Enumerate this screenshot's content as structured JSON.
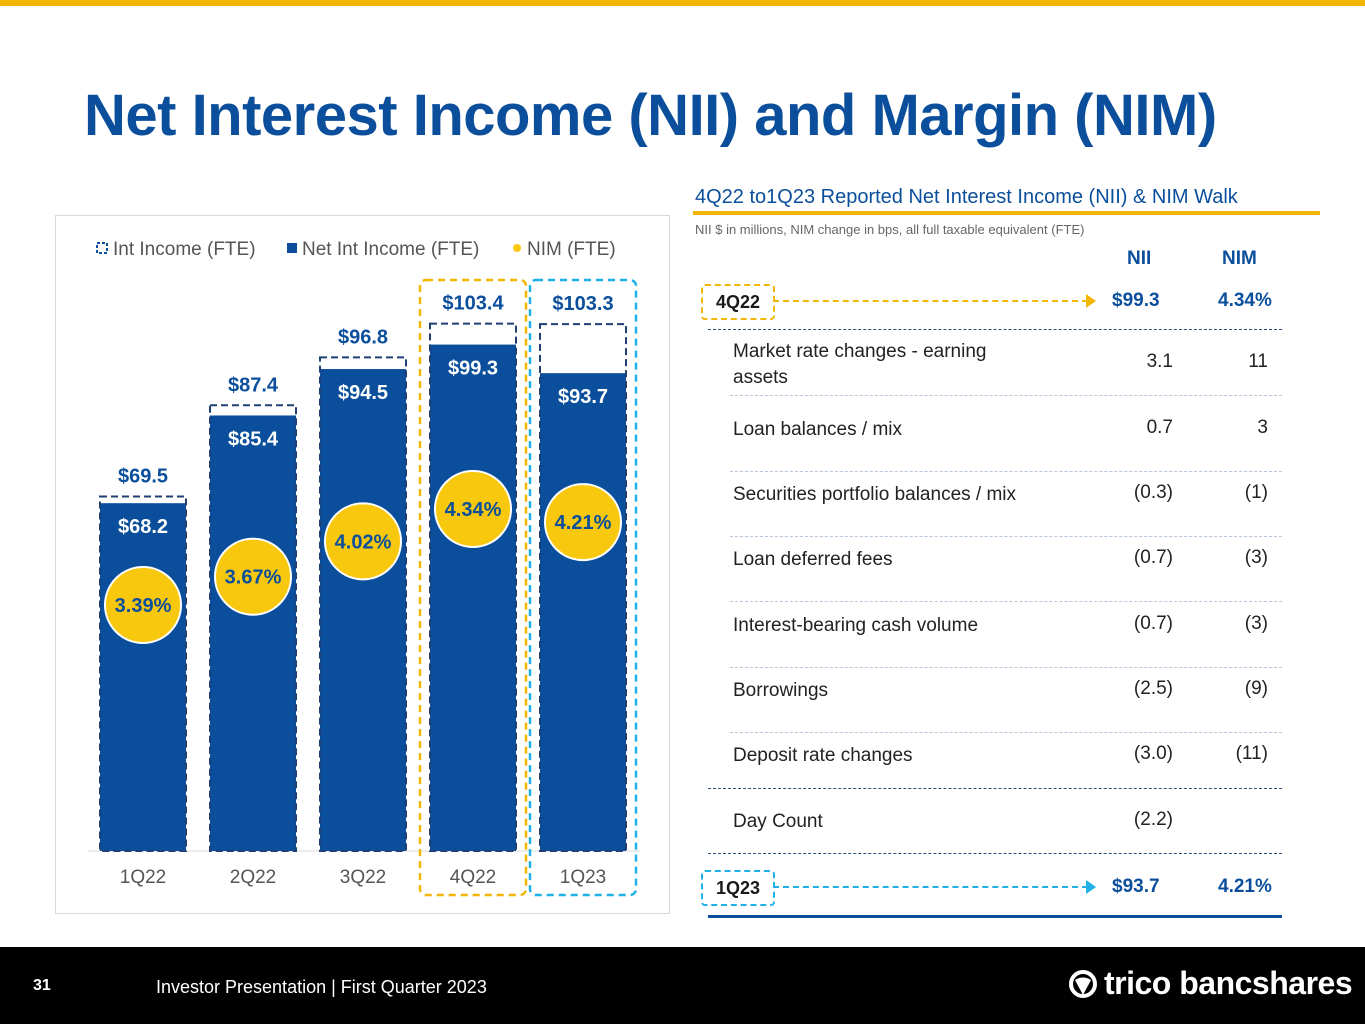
{
  "title": "Net Interest Income (NII) and Margin (NIM)",
  "chart_data": {
    "type": "bar",
    "categories": [
      "1Q22",
      "2Q22",
      "3Q22",
      "4Q22",
      "1Q23"
    ],
    "series": [
      {
        "name": "Int Income (FTE)",
        "values": [
          69.5,
          87.4,
          96.8,
          103.4,
          103.3
        ],
        "labels": [
          "$69.5",
          "$87.4",
          "$96.8",
          "$103.4",
          "$103.3"
        ]
      },
      {
        "name": "Net Int Income (FTE)",
        "values": [
          68.2,
          85.4,
          94.5,
          99.3,
          93.7
        ],
        "labels": [
          "$68.2",
          "$85.4",
          "$94.5",
          "$99.3",
          "$93.7"
        ]
      },
      {
        "name": "NIM (FTE)",
        "values": [
          3.39,
          3.67,
          4.02,
          4.34,
          4.21
        ],
        "labels": [
          "3.39%",
          "3.67%",
          "4.02%",
          "4.34%",
          "4.21%"
        ]
      }
    ],
    "legend": "top",
    "colors": {
      "bar": "#0b4f9c",
      "nim": "#f8c80f",
      "highlight_4q22": "#f2b705",
      "highlight_1q23": "#1fb0e6"
    }
  },
  "walk": {
    "title": "4Q22 to1Q23 Reported Net Interest Income (NII) & NIM Walk",
    "subtitle": "NII $ in millions, NIM change in bps, all full taxable equivalent (FTE)",
    "col_nii": "NII",
    "col_nim": "NIM",
    "start": {
      "label": "4Q22",
      "nii": "$99.3",
      "nim": "4.34%"
    },
    "rows": [
      {
        "label": "Market rate changes - earning assets",
        "nii": "3.1",
        "nim": "11"
      },
      {
        "label": "Loan balances / mix",
        "nii": "0.7",
        "nim": "3"
      },
      {
        "label": "Securities portfolio balances / mix",
        "nii": "(0.3)",
        "nim": "(1)"
      },
      {
        "label": "Loan deferred fees",
        "nii": "(0.7)",
        "nim": "(3)"
      },
      {
        "label": "Interest-bearing cash volume",
        "nii": "(0.7)",
        "nim": "(3)"
      },
      {
        "label": "Borrowings",
        "nii": "(2.5)",
        "nim": "(9)"
      },
      {
        "label": "Deposit rate changes",
        "nii": "(3.0)",
        "nim": "(11)"
      },
      {
        "label": "Day Count",
        "nii": "(2.2)",
        "nim": ""
      }
    ],
    "end": {
      "label": "1Q23",
      "nii": "$93.7",
      "nim": "4.21%"
    }
  },
  "footer": {
    "page": "31",
    "text": "Investor Presentation | First Quarter 2023",
    "logo": "trico bancshares"
  }
}
